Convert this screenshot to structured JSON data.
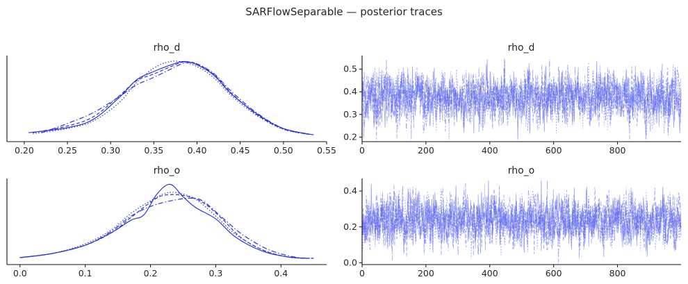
{
  "figure": {
    "suptitle": "SARFlowSeparable — posterior traces",
    "line_color": "#2b35d9",
    "trace_color": "#5560ee"
  },
  "chart_data": [
    {
      "type": "line",
      "kind": "density",
      "title": "rho_d",
      "xlim": [
        0.18,
        0.55
      ],
      "xticks": [
        "0.20",
        "0.25",
        "0.30",
        "0.35",
        "0.40",
        "0.45",
        "0.50",
        "0.55"
      ],
      "yticks": [],
      "grid": false,
      "series": [
        {
          "style": "solid",
          "points": [
            [
              0.205,
              0.4
            ],
            [
              0.25,
              1.0
            ],
            [
              0.28,
              2.0
            ],
            [
              0.31,
              4.6
            ],
            [
              0.33,
              6.7
            ],
            [
              0.35,
              7.7
            ],
            [
              0.37,
              8.5
            ],
            [
              0.385,
              8.9
            ],
            [
              0.4,
              8.5
            ],
            [
              0.42,
              7.2
            ],
            [
              0.44,
              5.0
            ],
            [
              0.47,
              2.6
            ],
            [
              0.5,
              0.9
            ],
            [
              0.535,
              0.15
            ]
          ]
        },
        {
          "style": "dashed",
          "points": [
            [
              0.21,
              0.4
            ],
            [
              0.25,
              1.2
            ],
            [
              0.28,
              2.3
            ],
            [
              0.31,
              4.8
            ],
            [
              0.33,
              6.6
            ],
            [
              0.35,
              7.4
            ],
            [
              0.37,
              8.3
            ],
            [
              0.385,
              8.85
            ],
            [
              0.4,
              8.6
            ],
            [
              0.42,
              7.3
            ],
            [
              0.44,
              5.1
            ],
            [
              0.47,
              2.5
            ],
            [
              0.5,
              0.85
            ],
            [
              0.53,
              0.2
            ]
          ]
        },
        {
          "style": "dashdot",
          "points": [
            [
              0.22,
              0.4
            ],
            [
              0.25,
              1.5
            ],
            [
              0.28,
              2.8
            ],
            [
              0.31,
              4.7
            ],
            [
              0.33,
              6.1
            ],
            [
              0.35,
              7.0
            ],
            [
              0.37,
              8.0
            ],
            [
              0.385,
              8.7
            ],
            [
              0.4,
              8.6
            ],
            [
              0.42,
              7.4
            ],
            [
              0.44,
              5.3
            ],
            [
              0.47,
              2.7
            ],
            [
              0.5,
              0.9
            ],
            [
              0.53,
              0.2
            ]
          ]
        },
        {
          "style": "dotted",
          "points": [
            [
              0.21,
              0.3
            ],
            [
              0.25,
              0.9
            ],
            [
              0.28,
              1.8
            ],
            [
              0.31,
              4.0
            ],
            [
              0.33,
              6.4
            ],
            [
              0.35,
              8.1
            ],
            [
              0.365,
              8.8
            ],
            [
              0.38,
              8.9
            ],
            [
              0.4,
              8.3
            ],
            [
              0.42,
              6.9
            ],
            [
              0.44,
              4.8
            ],
            [
              0.47,
              2.4
            ],
            [
              0.5,
              0.8
            ],
            [
              0.53,
              0.2
            ]
          ]
        }
      ]
    },
    {
      "type": "line",
      "kind": "trace",
      "title": "rho_d",
      "xlim": [
        0,
        999
      ],
      "ylim": [
        0.18,
        0.56
      ],
      "xticks": [
        "0",
        "200",
        "400",
        "600",
        "800"
      ],
      "yticks": [
        "0.2",
        "0.3",
        "0.4",
        "0.5"
      ],
      "grid": false,
      "draws": 1000,
      "chains": 4,
      "center": 0.375,
      "spread": 0.055
    },
    {
      "type": "line",
      "kind": "density",
      "title": "rho_o",
      "xlim": [
        -0.02,
        0.47
      ],
      "xticks": [
        "0.0",
        "0.1",
        "0.2",
        "0.3",
        "0.4"
      ],
      "yticks": [],
      "grid": false,
      "series": [
        {
          "style": "solid",
          "points": [
            [
              0.0,
              0.1
            ],
            [
              0.05,
              0.4
            ],
            [
              0.1,
              1.0
            ],
            [
              0.14,
              1.9
            ],
            [
              0.17,
              2.8
            ],
            [
              0.19,
              3.2
            ],
            [
              0.21,
              4.7
            ],
            [
              0.23,
              5.4
            ],
            [
              0.25,
              4.5
            ],
            [
              0.27,
              3.7
            ],
            [
              0.3,
              2.9
            ],
            [
              0.33,
              1.6
            ],
            [
              0.37,
              0.6
            ],
            [
              0.41,
              0.15
            ],
            [
              0.44,
              0.05
            ]
          ]
        },
        {
          "style": "dashed",
          "points": [
            [
              0.0,
              0.1
            ],
            [
              0.05,
              0.4
            ],
            [
              0.1,
              1.0
            ],
            [
              0.14,
              1.9
            ],
            [
              0.17,
              3.0
            ],
            [
              0.2,
              4.1
            ],
            [
              0.22,
              4.6
            ],
            [
              0.25,
              4.6
            ],
            [
              0.28,
              4.1
            ],
            [
              0.31,
              2.9
            ],
            [
              0.34,
              1.5
            ],
            [
              0.38,
              0.5
            ],
            [
              0.42,
              0.1
            ],
            [
              0.45,
              0.05
            ]
          ]
        },
        {
          "style": "dashdot",
          "points": [
            [
              0.0,
              0.1
            ],
            [
              0.05,
              0.4
            ],
            [
              0.1,
              1.0
            ],
            [
              0.14,
              2.0
            ],
            [
              0.17,
              3.1
            ],
            [
              0.2,
              3.8
            ],
            [
              0.23,
              4.2
            ],
            [
              0.26,
              4.4
            ],
            [
              0.28,
              4.2
            ],
            [
              0.31,
              3.0
            ],
            [
              0.34,
              1.8
            ],
            [
              0.38,
              0.7
            ],
            [
              0.42,
              0.15
            ],
            [
              0.45,
              0.05
            ]
          ]
        },
        {
          "style": "dotted",
          "points": [
            [
              0.0,
              0.1
            ],
            [
              0.05,
              0.4
            ],
            [
              0.1,
              1.1
            ],
            [
              0.14,
              2.1
            ],
            [
              0.17,
              3.3
            ],
            [
              0.2,
              4.2
            ],
            [
              0.22,
              4.7
            ],
            [
              0.24,
              4.8
            ],
            [
              0.27,
              4.3
            ],
            [
              0.3,
              3.1
            ],
            [
              0.33,
              1.8
            ],
            [
              0.37,
              0.7
            ],
            [
              0.41,
              0.15
            ],
            [
              0.44,
              0.05
            ]
          ]
        }
      ]
    },
    {
      "type": "line",
      "kind": "trace",
      "title": "rho_o",
      "xlim": [
        0,
        999
      ],
      "ylim": [
        -0.01,
        0.47
      ],
      "xticks": [
        "0",
        "200",
        "400",
        "600",
        "800"
      ],
      "yticks": [
        "0.0",
        "0.2",
        "0.4"
      ],
      "grid": false,
      "draws": 1000,
      "chains": 4,
      "center": 0.235,
      "spread": 0.07
    }
  ]
}
